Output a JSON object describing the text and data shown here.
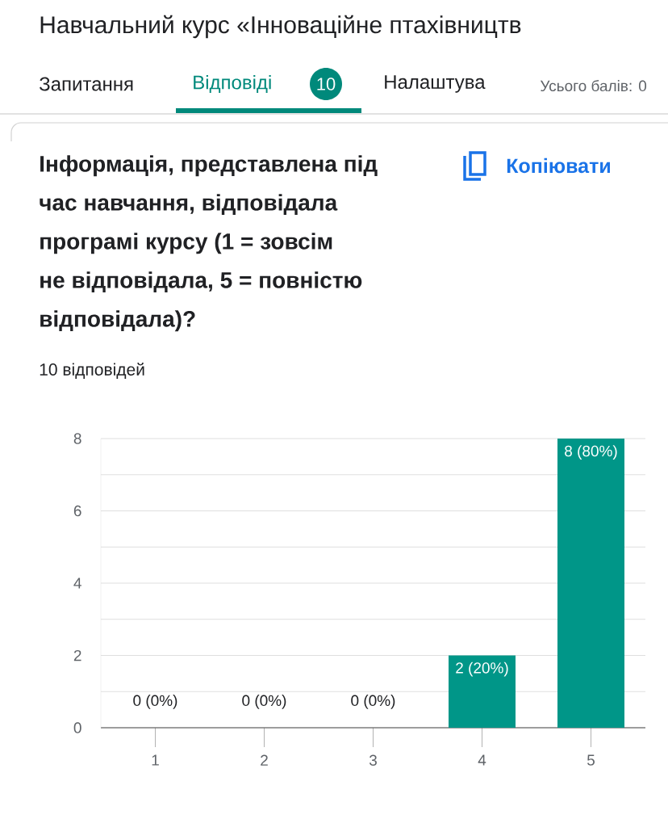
{
  "chart_data": {
    "type": "bar",
    "title": "Інформація, представлена під час навчання, відповідала програмі курсу (1 = зовсім не відповідала, 5 = повністю відповідала)?",
    "subtitle": "10 відповідей",
    "annotations": [
      "Навчальний курс «Інноваційне птахівництв",
      "Запитання",
      "Відповіді",
      "10",
      "Налаштува",
      "Усього балів: 0",
      "Копіювати"
    ],
    "categories": [
      "1",
      "2",
      "3",
      "4",
      "5"
    ],
    "values": [
      0,
      0,
      0,
      2,
      8
    ],
    "value_labels": [
      "0 (0%)",
      "0 (0%)",
      "0 (0%)",
      "2 (20%)",
      "8 (80%)"
    ],
    "color": "#009688",
    "ylim": [
      0,
      8
    ],
    "yticks": [
      0,
      {
        "value": 1,
        "label": null
      },
      2,
      {
        "value": 3,
        "label": null
      },
      4,
      {
        "value": 5,
        "label": null
      },
      6,
      {
        "value": 7,
        "label": null
      },
      8
    ],
    "grid": "y"
  }
}
